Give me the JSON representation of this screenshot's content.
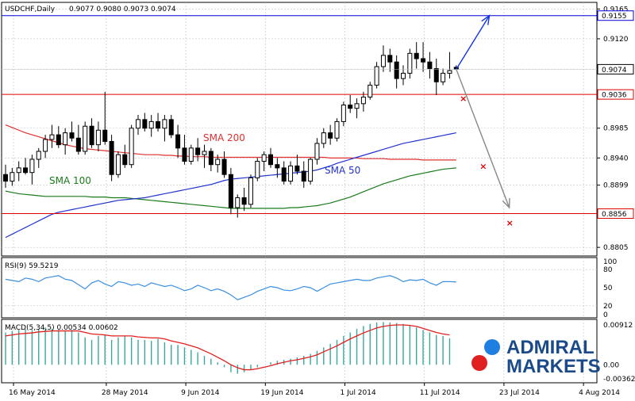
{
  "header": {
    "symbol": "USDCHF,Daily",
    "ohlc": "0.9077 0.9080 0.9073 0.9074"
  },
  "colors": {
    "up_candle": "#ffffff",
    "down_candle": "#000000",
    "sma200": "#e03030",
    "sma100": "#1a7a1a",
    "sma50": "#2233cc",
    "macd_hist": "#3aa6a0",
    "macd_signal": "#e02020",
    "rsi": "#3b8fe0",
    "level_red": "#e00000",
    "level_blue": "#0000dd",
    "arrow_blue": "#1133ee",
    "arrow_gray": "#888888",
    "logo_blue": "#1f7fe0",
    "logo_red": "#e02020",
    "logo_text": "#1a4a8a"
  },
  "logo": {
    "line1": "ADMIRAL",
    "line2": "MARKETS"
  },
  "chart_data": [
    {
      "type": "candlestick",
      "title": "USDCHF,Daily",
      "ylim": [
        0.8792,
        0.9175
      ],
      "yticks": [
        "0.9165",
        "0.9120",
        "0.9074",
        "0.9036",
        "0.8985",
        "0.8940",
        "0.8899",
        "0.8856",
        "0.8805"
      ],
      "x_labels": [
        "16 May 2014",
        "28 May 2014",
        "9 Jun 2014",
        "19 Jun 2014",
        "1 Jul 2014",
        "11 Jul 2014",
        "23 Jul 2014",
        "4 Aug 2014"
      ],
      "price_labels": [
        "0.9155",
        "0.9074",
        "0.9036",
        "0.8856"
      ],
      "candles": [
        {
          "o": 0.8915,
          "h": 0.893,
          "l": 0.8895,
          "c": 0.8905
        },
        {
          "o": 0.8905,
          "h": 0.8925,
          "l": 0.8898,
          "c": 0.8918
        },
        {
          "o": 0.8918,
          "h": 0.8935,
          "l": 0.8905,
          "c": 0.8925
        },
        {
          "o": 0.8925,
          "h": 0.894,
          "l": 0.8915,
          "c": 0.8918
        },
        {
          "o": 0.8918,
          "h": 0.8945,
          "l": 0.89,
          "c": 0.8938
        },
        {
          "o": 0.8938,
          "h": 0.8955,
          "l": 0.8925,
          "c": 0.895
        },
        {
          "o": 0.895,
          "h": 0.8975,
          "l": 0.894,
          "c": 0.8968
        },
        {
          "o": 0.8968,
          "h": 0.899,
          "l": 0.8955,
          "c": 0.8975
        },
        {
          "o": 0.8975,
          "h": 0.8988,
          "l": 0.8955,
          "c": 0.896
        },
        {
          "o": 0.896,
          "h": 0.8985,
          "l": 0.8945,
          "c": 0.8978
        },
        {
          "o": 0.8978,
          "h": 0.8995,
          "l": 0.8965,
          "c": 0.897
        },
        {
          "o": 0.897,
          "h": 0.899,
          "l": 0.8945,
          "c": 0.895
        },
        {
          "o": 0.895,
          "h": 0.8995,
          "l": 0.8945,
          "c": 0.8988
        },
        {
          "o": 0.8988,
          "h": 0.9,
          "l": 0.8955,
          "c": 0.896
        },
        {
          "o": 0.896,
          "h": 0.8995,
          "l": 0.895,
          "c": 0.8982
        },
        {
          "o": 0.8982,
          "h": 0.904,
          "l": 0.896,
          "c": 0.8965
        },
        {
          "o": 0.8965,
          "h": 0.8975,
          "l": 0.8905,
          "c": 0.8915
        },
        {
          "o": 0.8915,
          "h": 0.895,
          "l": 0.891,
          "c": 0.8945
        },
        {
          "o": 0.8945,
          "h": 0.896,
          "l": 0.8925,
          "c": 0.893
        },
        {
          "o": 0.893,
          "h": 0.899,
          "l": 0.8925,
          "c": 0.8985
        },
        {
          "o": 0.8985,
          "h": 0.9005,
          "l": 0.8975,
          "c": 0.8998
        },
        {
          "o": 0.8998,
          "h": 0.9008,
          "l": 0.898,
          "c": 0.8985
        },
        {
          "o": 0.8985,
          "h": 0.9005,
          "l": 0.8972,
          "c": 0.8995
        },
        {
          "o": 0.8995,
          "h": 0.9008,
          "l": 0.898,
          "c": 0.8985
        },
        {
          "o": 0.8985,
          "h": 0.9005,
          "l": 0.8965,
          "c": 0.8998
        },
        {
          "o": 0.8998,
          "h": 0.9005,
          "l": 0.897,
          "c": 0.8975
        },
        {
          "o": 0.8975,
          "h": 0.899,
          "l": 0.894,
          "c": 0.8955
        },
        {
          "o": 0.8955,
          "h": 0.8975,
          "l": 0.893,
          "c": 0.8935
        },
        {
          "o": 0.8935,
          "h": 0.896,
          "l": 0.893,
          "c": 0.8955
        },
        {
          "o": 0.8955,
          "h": 0.897,
          "l": 0.8935,
          "c": 0.8945
        },
        {
          "o": 0.8945,
          "h": 0.896,
          "l": 0.8925,
          "c": 0.895
        },
        {
          "o": 0.895,
          "h": 0.8955,
          "l": 0.892,
          "c": 0.893
        },
        {
          "o": 0.893,
          "h": 0.8945,
          "l": 0.8918,
          "c": 0.8938
        },
        {
          "o": 0.8938,
          "h": 0.895,
          "l": 0.891,
          "c": 0.8915
        },
        {
          "o": 0.8915,
          "h": 0.8925,
          "l": 0.8855,
          "c": 0.8865
        },
        {
          "o": 0.8865,
          "h": 0.8885,
          "l": 0.885,
          "c": 0.888
        },
        {
          "o": 0.888,
          "h": 0.8895,
          "l": 0.886,
          "c": 0.887
        },
        {
          "o": 0.887,
          "h": 0.8915,
          "l": 0.8865,
          "c": 0.891
        },
        {
          "o": 0.891,
          "h": 0.894,
          "l": 0.8905,
          "c": 0.8935
        },
        {
          "o": 0.8935,
          "h": 0.895,
          "l": 0.892,
          "c": 0.8945
        },
        {
          "o": 0.8945,
          "h": 0.8955,
          "l": 0.8925,
          "c": 0.893
        },
        {
          "o": 0.893,
          "h": 0.894,
          "l": 0.891,
          "c": 0.8925
        },
        {
          "o": 0.8925,
          "h": 0.8935,
          "l": 0.89,
          "c": 0.8905
        },
        {
          "o": 0.8905,
          "h": 0.8935,
          "l": 0.89,
          "c": 0.8928
        },
        {
          "o": 0.8928,
          "h": 0.8945,
          "l": 0.8915,
          "c": 0.892
        },
        {
          "o": 0.892,
          "h": 0.8935,
          "l": 0.8895,
          "c": 0.8905
        },
        {
          "o": 0.8905,
          "h": 0.894,
          "l": 0.89,
          "c": 0.8938
        },
        {
          "o": 0.8938,
          "h": 0.897,
          "l": 0.893,
          "c": 0.8962
        },
        {
          "o": 0.8962,
          "h": 0.8985,
          "l": 0.8955,
          "c": 0.8978
        },
        {
          "o": 0.8978,
          "h": 0.899,
          "l": 0.896,
          "c": 0.897
        },
        {
          "o": 0.897,
          "h": 0.9,
          "l": 0.8965,
          "c": 0.8995
        },
        {
          "o": 0.8995,
          "h": 0.9025,
          "l": 0.8988,
          "c": 0.902
        },
        {
          "o": 0.902,
          "h": 0.9035,
          "l": 0.9008,
          "c": 0.9015
        },
        {
          "o": 0.9015,
          "h": 0.903,
          "l": 0.9,
          "c": 0.9022
        },
        {
          "o": 0.9022,
          "h": 0.904,
          "l": 0.901,
          "c": 0.9032
        },
        {
          "o": 0.9032,
          "h": 0.9055,
          "l": 0.9028,
          "c": 0.905
        },
        {
          "o": 0.905,
          "h": 0.9085,
          "l": 0.9045,
          "c": 0.9078
        },
        {
          "o": 0.9078,
          "h": 0.911,
          "l": 0.907,
          "c": 0.9095
        },
        {
          "o": 0.9095,
          "h": 0.9105,
          "l": 0.907,
          "c": 0.9085
        },
        {
          "o": 0.9085,
          "h": 0.9095,
          "l": 0.9045,
          "c": 0.906
        },
        {
          "o": 0.906,
          "h": 0.908,
          "l": 0.905,
          "c": 0.9068
        },
        {
          "o": 0.9068,
          "h": 0.9105,
          "l": 0.906,
          "c": 0.9098
        },
        {
          "o": 0.9098,
          "h": 0.9115,
          "l": 0.9075,
          "c": 0.909
        },
        {
          "o": 0.909,
          "h": 0.9115,
          "l": 0.907,
          "c": 0.9085
        },
        {
          "o": 0.9085,
          "h": 0.91,
          "l": 0.906,
          "c": 0.9075
        },
        {
          "o": 0.9075,
          "h": 0.909,
          "l": 0.9035,
          "c": 0.9055
        },
        {
          "o": 0.9055,
          "h": 0.9075,
          "l": 0.905,
          "c": 0.9068
        },
        {
          "o": 0.9068,
          "h": 0.91,
          "l": 0.906,
          "c": 0.9072
        },
        {
          "o": 0.9077,
          "h": 0.908,
          "l": 0.9073,
          "c": 0.9074
        }
      ],
      "sma": [
        {
          "name": "SMA 200",
          "color_key": "sma200",
          "values": [
            0.899,
            0.8986,
            0.8982,
            0.8978,
            0.8975,
            0.8972,
            0.8969,
            0.8966,
            0.8963,
            0.896,
            0.8958,
            0.8956,
            0.8954,
            0.8953,
            0.8952,
            0.8951,
            0.895,
            0.8949,
            0.8948,
            0.8947,
            0.8946,
            0.8945,
            0.8945,
            0.8945,
            0.8944,
            0.8944,
            0.8943,
            0.8943,
            0.8942,
            0.8942,
            0.8942,
            0.8941,
            0.8941,
            0.8941,
            0.8941,
            0.8941,
            0.8941,
            0.8941,
            0.8941,
            0.8941,
            0.8941,
            0.8941,
            0.8941,
            0.8941,
            0.8941,
            0.8941,
            0.8941,
            0.8941,
            0.8941,
            0.894,
            0.894,
            0.894,
            0.894,
            0.894,
            0.8939,
            0.8939,
            0.8939,
            0.8939,
            0.8938,
            0.8938,
            0.8938,
            0.8938,
            0.8938,
            0.8937,
            0.8937,
            0.8937,
            0.8937,
            0.8937,
            0.8937
          ]
        },
        {
          "name": "SMA 100",
          "color_key": "sma100",
          "values": [
            0.889,
            0.8888,
            0.8886,
            0.8885,
            0.8884,
            0.8883,
            0.8882,
            0.8882,
            0.8882,
            0.8882,
            0.8882,
            0.8882,
            0.8882,
            0.8881,
            0.8881,
            0.8881,
            0.888,
            0.888,
            0.888,
            0.8879,
            0.8878,
            0.8877,
            0.8876,
            0.8875,
            0.8874,
            0.8873,
            0.8872,
            0.8871,
            0.887,
            0.8869,
            0.8868,
            0.8867,
            0.8866,
            0.8865,
            0.8864,
            0.8864,
            0.8864,
            0.8864,
            0.8864,
            0.8864,
            0.8864,
            0.8864,
            0.8864,
            0.8865,
            0.8865,
            0.8866,
            0.8867,
            0.8868,
            0.887,
            0.8872,
            0.8875,
            0.8878,
            0.8881,
            0.8885,
            0.8889,
            0.8893,
            0.8897,
            0.8901,
            0.8904,
            0.8907,
            0.891,
            0.8913,
            0.8915,
            0.8917,
            0.8919,
            0.8921,
            0.8923,
            0.8924,
            0.8925
          ]
        },
        {
          "name": "SMA 50",
          "color_key": "sma50",
          "values": [
            0.882,
            0.8825,
            0.883,
            0.8835,
            0.884,
            0.8845,
            0.885,
            0.8855,
            0.8858,
            0.886,
            0.8862,
            0.8864,
            0.8866,
            0.8868,
            0.887,
            0.8872,
            0.8874,
            0.8876,
            0.8877,
            0.8878,
            0.8879,
            0.888,
            0.8882,
            0.8884,
            0.8886,
            0.8888,
            0.889,
            0.8892,
            0.8894,
            0.8896,
            0.8898,
            0.89,
            0.8903,
            0.8906,
            0.8908,
            0.8909,
            0.891,
            0.8911,
            0.8912,
            0.8913,
            0.8914,
            0.8915,
            0.8916,
            0.8917,
            0.8918,
            0.8919,
            0.892,
            0.8922,
            0.8925,
            0.8928,
            0.8932,
            0.8935,
            0.8938,
            0.8941,
            0.8944,
            0.8947,
            0.895,
            0.8953,
            0.8956,
            0.8959,
            0.8962,
            0.8964,
            0.8966,
            0.8968,
            0.897,
            0.8972,
            0.8974,
            0.8976,
            0.8978
          ]
        }
      ],
      "annotations": [
        "SMA 200",
        "SMA 100",
        "SMA 50"
      ],
      "levels": [
        {
          "value": 0.9155,
          "color_key": "level_blue",
          "label": "0.9155"
        },
        {
          "value": 0.9036,
          "color_key": "level_red",
          "label": "0.9036"
        },
        {
          "value": 0.8856,
          "color_key": "level_red",
          "label": "0.8856"
        }
      ],
      "current_price": {
        "value": 0.9074,
        "label": "0.9074"
      },
      "forecast_arrows": [
        {
          "color_key": "arrow_blue",
          "from": [
            68,
            0.9074
          ],
          "to": [
            73,
            0.9155
          ]
        },
        {
          "color_key": "arrow_gray",
          "from": [
            68,
            0.9074
          ],
          "to": [
            76,
            0.8865
          ]
        }
      ],
      "cross_marks": [
        [
          69,
          0.903
        ],
        [
          72,
          0.8928
        ],
        [
          76,
          0.8842
        ]
      ]
    },
    {
      "type": "line",
      "title": "RSI(9) 59.5219",
      "ylim": [
        0,
        100
      ],
      "yticks": [
        "100",
        "80",
        "50",
        "20",
        "0"
      ],
      "guides": [
        80,
        20
      ],
      "values": [
        64,
        62,
        60,
        66,
        64,
        60,
        66,
        68,
        70,
        64,
        62,
        55,
        48,
        58,
        62,
        56,
        52,
        60,
        58,
        54,
        56,
        52,
        58,
        55,
        52,
        54,
        50,
        45,
        48,
        54,
        50,
        45,
        48,
        44,
        38,
        30,
        34,
        38,
        44,
        48,
        52,
        50,
        46,
        45,
        48,
        52,
        50,
        44,
        50,
        56,
        58,
        60,
        62,
        64,
        62,
        62,
        66,
        68,
        70,
        66,
        60,
        63,
        62,
        64,
        58,
        54,
        60,
        60,
        59.5
      ]
    },
    {
      "type": "bar+line",
      "title": "MACD(5,34,5) 0.00534 0.00602",
      "ylim": [
        -0.00362,
        0.00912
      ],
      "yticks": [
        "0.00912",
        "0.00",
        "-0.00362"
      ],
      "histogram": [
        0.0065,
        0.0068,
        0.007,
        0.0072,
        0.007,
        0.0072,
        0.0075,
        0.0072,
        0.007,
        0.0068,
        0.007,
        0.0065,
        0.0055,
        0.005,
        0.0058,
        0.006,
        0.005,
        0.0055,
        0.0058,
        0.0055,
        0.005,
        0.005,
        0.0048,
        0.0052,
        0.0045,
        0.004,
        0.004,
        0.0035,
        0.003,
        0.0025,
        0.0018,
        0.0012,
        0.0005,
        -0.0005,
        -0.0015,
        -0.0018,
        -0.0015,
        -0.001,
        -0.0005,
        0.0,
        0.0005,
        0.0008,
        0.001,
        0.0012,
        0.0015,
        0.0018,
        0.0022,
        0.0028,
        0.0035,
        0.0042,
        0.005,
        0.0058,
        0.0065,
        0.0072,
        0.0078,
        0.0082,
        0.0085,
        0.0086,
        0.0085,
        0.0084,
        0.0082,
        0.008,
        0.0075,
        0.007,
        0.0065,
        0.006,
        0.0058,
        0.0053
      ],
      "signal": [
        0.0058,
        0.006,
        0.0062,
        0.0063,
        0.0064,
        0.0066,
        0.0067,
        0.0068,
        0.0068,
        0.0068,
        0.0068,
        0.0068,
        0.0065,
        0.0062,
        0.0061,
        0.006,
        0.0058,
        0.0058,
        0.0058,
        0.0058,
        0.0056,
        0.0055,
        0.0054,
        0.0054,
        0.0052,
        0.0048,
        0.0045,
        0.0042,
        0.0038,
        0.0034,
        0.0028,
        0.0022,
        0.0015,
        0.0008,
        0.0,
        -0.0006,
        -0.001,
        -0.001,
        -0.0008,
        -0.0005,
        -0.0002,
        0.0002,
        0.0005,
        0.0008,
        0.001,
        0.0013,
        0.0016,
        0.002,
        0.0026,
        0.0032,
        0.0038,
        0.0045,
        0.0052,
        0.0058,
        0.0064,
        0.0069,
        0.0074,
        0.0077,
        0.0079,
        0.008,
        0.008,
        0.0079,
        0.0077,
        0.0073,
        0.0069,
        0.0065,
        0.0062,
        0.006
      ]
    }
  ]
}
